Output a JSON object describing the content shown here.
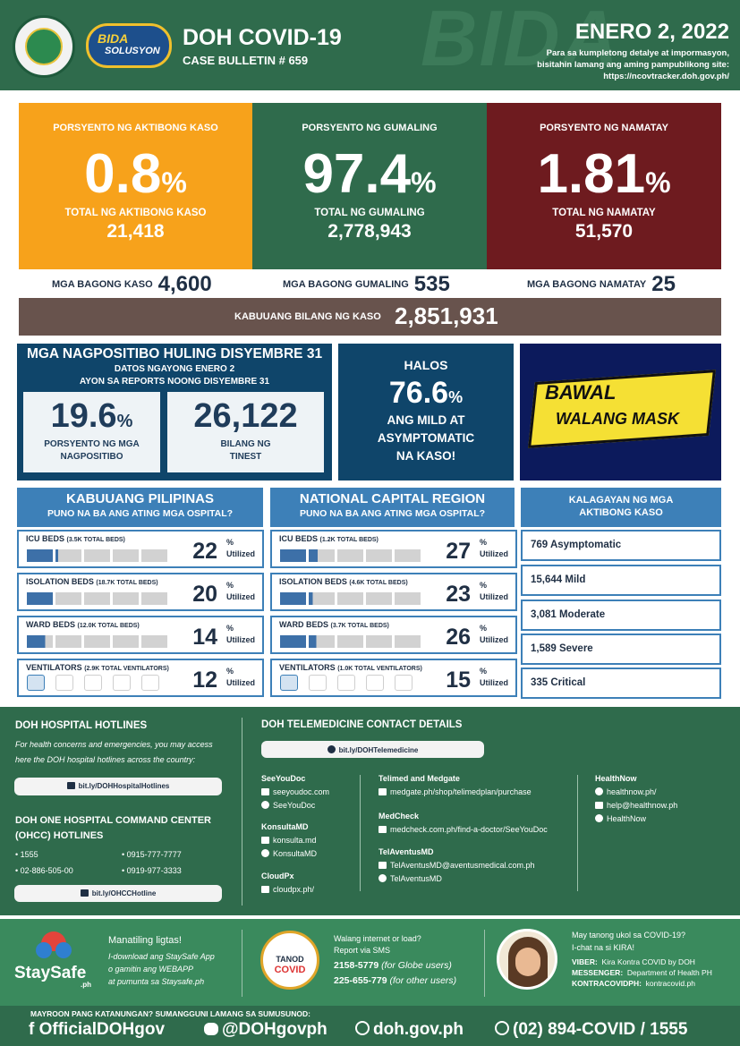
{
  "header": {
    "bgword": "BIDA",
    "bida_line1": "BIDA",
    "bida_line2": "SOLUSYON",
    "title": "DOH COVID-19",
    "bulletin": "CASE BULLETIN # 659",
    "date": "ENERO 2, 2022",
    "info_line1": "Para sa kumpletong detalye at impormasyon,",
    "info_line2": "bisitahin lamang ang aming pampublikong site:",
    "info_url": "https://ncovtracker.doh.gov.ph/"
  },
  "cards": {
    "active": {
      "label": "PORSYENTO NG AKTIBONG KASO",
      "pct": "0.8",
      "total_label": "TOTAL NG AKTIBONG KASO",
      "total": "21,418"
    },
    "recovered": {
      "label": "PORSYENTO NG GUMALING",
      "pct": "97.4",
      "total_label": "TOTAL NG GUMALING",
      "total": "2,778,943"
    },
    "died": {
      "label": "PORSYENTO NG NAMATAY",
      "pct": "1.81",
      "total_label": "TOTAL NG NAMATAY",
      "total": "51,570"
    },
    "pct_sign": "%"
  },
  "new_counts": {
    "cases_label": "MGA BAGONG KASO",
    "cases": "4,600",
    "recovered_label": "MGA BAGONG GUMALING",
    "recovered": "535",
    "died_label": "MGA BAGONG NAMATAY",
    "died": "25"
  },
  "total_cases": {
    "label": "KABUUANG BILANG NG KASO",
    "value": "2,851,931"
  },
  "positivity": {
    "title": "MGA NAGPOSITIBO HULING DISYEMBRE 31",
    "sub1": "DATOS NGAYONG ENERO 2",
    "sub2": "AYON SA REPORTS NOONG DISYEMBRE 31",
    "rate": "19.6",
    "rate_label1": "PORSYENTO NG MGA",
    "rate_label2": "NAGPOSITIBO",
    "tested": "26,122",
    "tested_label1": "BILANG NG",
    "tested_label2": "TINEST"
  },
  "mild": {
    "halos": "HALOS",
    "pct": "76.6",
    "line1": "ANG MILD AT",
    "line2": "ASYMPTOMATIC",
    "line3": "NA KASO!"
  },
  "mask": {
    "line1": "BAWAL",
    "line2": "WALANG MASK"
  },
  "ph": {
    "title": "KABUUANG PILIPINAS",
    "subtitle": "PUNO NA BA ANG ATING MGA OSPITAL?",
    "beds": [
      {
        "name": "ICU BEDS",
        "cap": "(3.5K TOTAL BEDS)",
        "pct": "22",
        "utilization": 0.22
      },
      {
        "name": "ISOLATION BEDS",
        "cap": "(18.7K TOTAL BEDS)",
        "pct": "20",
        "utilization": 0.2
      },
      {
        "name": "WARD BEDS",
        "cap": "(12.0K TOTAL BEDS)",
        "pct": "14",
        "utilization": 0.14
      },
      {
        "name": "VENTILATORS",
        "cap": "(2.9K TOTAL VENTILATORS)",
        "pct": "12",
        "utilization": 0.12
      }
    ]
  },
  "ncr": {
    "title": "NATIONAL CAPITAL REGION",
    "subtitle": "PUNO NA BA ANG ATING MGA OSPITAL?",
    "beds": [
      {
        "name": "ICU BEDS",
        "cap": "(1.2K TOTAL BEDS)",
        "pct": "27",
        "utilization": 0.27
      },
      {
        "name": "ISOLATION BEDS",
        "cap": "(4.6K TOTAL BEDS)",
        "pct": "23",
        "utilization": 0.23
      },
      {
        "name": "WARD BEDS",
        "cap": "(3.7K TOTAL BEDS)",
        "pct": "26",
        "utilization": 0.26
      },
      {
        "name": "VENTILATORS",
        "cap": "(1.0K TOTAL VENTILATORS)",
        "pct": "15",
        "utilization": 0.15
      }
    ]
  },
  "utilized": "Utilized",
  "status": {
    "title1": "KALAGAYAN NG MGA",
    "title2": "AKTIBONG KASO",
    "items": [
      "769 Asymptomatic",
      "15,644 Mild",
      "3,081 Moderate",
      "1,589 Severe",
      "335 Critical"
    ]
  },
  "hotlines": {
    "title": "DOH HOSPITAL HOTLINES",
    "desc1": "For health concerns and emergencies, you may access",
    "desc2": "here the DOH hospital hotlines across the country:",
    "link": "bit.ly/DOHHospitalHotlines",
    "ohcc_title1": "DOH ONE HOSPITAL COMMAND CENTER",
    "ohcc_title2": "(OHCC) HOTLINES",
    "ohcc_numbers": [
      "1555",
      "0915-777-7777",
      "02-886-505-00",
      "0919-977-3333"
    ],
    "ohcc_link": "bit.ly/OHCCHotline"
  },
  "telemed": {
    "title": "DOH TELEMEDICINE CONTACT DETAILS",
    "link": "bit.ly/DOHTelemedicine",
    "seeyoudoc": {
      "name": "SeeYouDoc",
      "l1": "seeyoudoc.com",
      "l2": "SeeYouDoc"
    },
    "konsulta": {
      "name": "KonsultaMD",
      "l1": "konsulta.md",
      "l2": "KonsultaMD"
    },
    "cloudpx": {
      "name": "CloudPx",
      "l1": "cloudpx.ph/"
    },
    "telimed": {
      "name": "Telimed and Medgate",
      "l1": "medgate.ph/shop/telimedplan/purchase"
    },
    "medcheck": {
      "name": "MedCheck",
      "l1": "medcheck.com.ph/find-a-doctor/SeeYouDoc"
    },
    "telaventus": {
      "name": "TelAventusMD",
      "l1": "TelAventusMD@aventusmedical.com.ph",
      "l2": "TelAventusMD"
    },
    "healthnow": {
      "name": "HealthNow",
      "l1": "healthnow.ph/",
      "l2": "help@healthnow.ph",
      "l3": "HealthNow"
    }
  },
  "staysafe": {
    "logo": "StaySafe",
    "logo_suffix": ".ph",
    "title": "Manatiling ligtas!",
    "l1": "I-download ang StaySafe App",
    "l2": "o gamitin ang WEBAPP",
    "l3": "at pumunta sa Staysafe.ph"
  },
  "tanod": {
    "logo1": "TANOD",
    "logo2": "COVID",
    "l1": "Walang internet or load?",
    "l2": "Report via SMS",
    "n1": "2158-5779",
    "n1_note": "(for Globe users)",
    "n2": "225-655-779",
    "n2_note": "(for other users)"
  },
  "kira": {
    "l1": "May tanong ukol sa COVID-19?",
    "l2": "I-chat na si KIRA!",
    "viber_label": "VIBER:",
    "viber": "Kira Kontra COVID by DOH",
    "messenger_label": "MESSENGER:",
    "messenger": "Department of Health PH",
    "kontra_label": "KONTRACOVIDPH:",
    "kontra": "kontracovid.ph"
  },
  "footer": {
    "note": "MAYROON PANG KATANUNGAN? SUMANGGUNI LAMANG SA SUMUSUNOD:",
    "facebook": "OfficialDOHgov",
    "twitter": "@DOHgovph",
    "web": "doh.gov.ph",
    "phone": "(02) 894-COVID",
    "sep": "/",
    "phone2": "1555"
  },
  "colors": {
    "orange": "#f7a21b",
    "green": "#2f6b4c",
    "maroon": "#6e1b1f",
    "navy": "#0f456a",
    "blue": "#3d80b8"
  }
}
